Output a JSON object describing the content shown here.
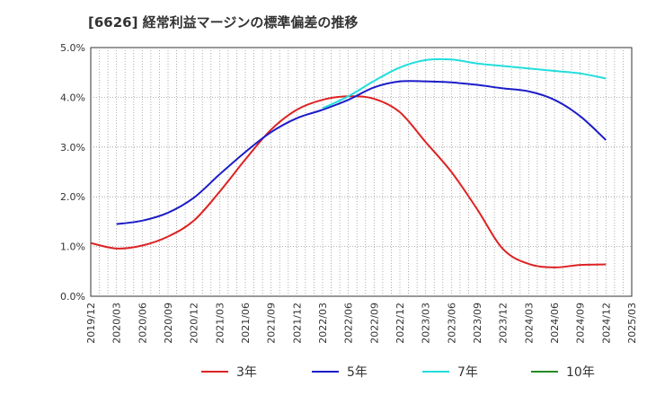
{
  "chart_data": {
    "type": "line",
    "title": "[6626]  経常利益マージンの標準偏差の推移",
    "xlabel": "",
    "ylabel": "",
    "ylim": [
      0,
      5
    ],
    "y_ticks": [
      "0.0%",
      "1.0%",
      "2.0%",
      "3.0%",
      "4.0%",
      "5.0%"
    ],
    "x_ticks": [
      "2019/12",
      "2020/03",
      "2020/06",
      "2020/09",
      "2020/12",
      "2021/03",
      "2021/06",
      "2021/09",
      "2021/12",
      "2022/03",
      "2022/06",
      "2022/09",
      "2022/12",
      "2023/03",
      "2023/06",
      "2023/09",
      "2023/12",
      "2024/03",
      "2024/06",
      "2024/09",
      "2024/12",
      "2025/03"
    ],
    "grid": true,
    "legend_position": "bottom",
    "series": [
      {
        "name": "3年",
        "color": "#dd2222",
        "x": [
          "2019/12",
          "2020/03",
          "2020/06",
          "2020/09",
          "2020/12",
          "2021/03",
          "2021/06",
          "2021/09",
          "2021/12",
          "2022/03",
          "2022/06",
          "2022/09",
          "2022/12",
          "2023/03",
          "2023/06",
          "2023/09",
          "2023/12",
          "2024/03",
          "2024/06",
          "2024/09",
          "2024/12"
        ],
        "values": [
          1.07,
          0.96,
          1.02,
          1.2,
          1.52,
          2.1,
          2.75,
          3.35,
          3.75,
          3.95,
          4.02,
          3.97,
          3.7,
          3.1,
          2.5,
          1.75,
          0.95,
          0.65,
          0.58,
          0.63,
          0.64
        ]
      },
      {
        "name": "5年",
        "color": "#1c1cc8",
        "x": [
          "2020/03",
          "2020/06",
          "2020/09",
          "2020/12",
          "2021/03",
          "2021/06",
          "2021/09",
          "2021/12",
          "2022/03",
          "2022/06",
          "2022/09",
          "2022/12",
          "2023/03",
          "2023/06",
          "2023/09",
          "2023/12",
          "2024/03",
          "2024/06",
          "2024/09",
          "2024/12"
        ],
        "values": [
          1.45,
          1.52,
          1.68,
          1.98,
          2.45,
          2.9,
          3.3,
          3.58,
          3.75,
          3.95,
          4.2,
          4.32,
          4.32,
          4.3,
          4.25,
          4.18,
          4.12,
          3.95,
          3.62,
          3.14
        ]
      },
      {
        "name": "7年",
        "color": "#22dddd",
        "x": [
          "2022/03",
          "2022/06",
          "2022/09",
          "2022/12",
          "2023/03",
          "2023/06",
          "2023/09",
          "2023/12",
          "2024/03",
          "2024/06",
          "2024/09",
          "2024/12"
        ],
        "values": [
          3.78,
          4.02,
          4.33,
          4.6,
          4.75,
          4.76,
          4.68,
          4.63,
          4.58,
          4.53,
          4.48,
          4.38
        ]
      },
      {
        "name": "10年",
        "color": "#228b22",
        "x": [],
        "values": []
      }
    ]
  }
}
